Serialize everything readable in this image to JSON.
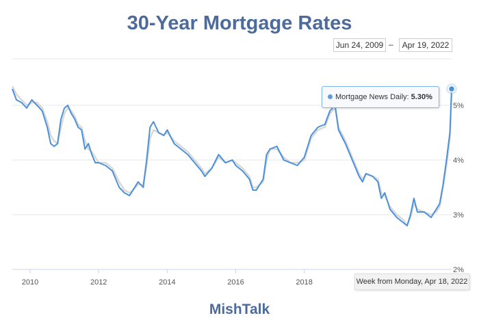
{
  "title": "30-Year Mortgage Rates",
  "date_range": {
    "from": "Jun 24, 2009",
    "to": "Apr 19, 2022",
    "separator": "–"
  },
  "brand": "MishTalk",
  "tooltip": {
    "series": "Mortgage News Daily: ",
    "value": "5.30%"
  },
  "week_label": "Week from Monday, Apr 18, 2022",
  "colors": {
    "main_line": "#4a90d9",
    "shadow_line": "#d8d8d8",
    "grid": "#e6e6e6",
    "title": "#4d6a9c"
  },
  "chart_data": {
    "type": "line",
    "title": "30-Year Mortgage Rates",
    "xlabel": "",
    "ylabel": "",
    "xlim": [
      2009.48,
      2022.3
    ],
    "ylim": [
      2,
      5.85
    ],
    "x_ticks": [
      "2010",
      "2012",
      "2014",
      "2016",
      "2018"
    ],
    "y_ticks": [
      {
        "value": 5,
        "label": "5%"
      },
      {
        "value": 4,
        "label": "4%"
      },
      {
        "value": 3,
        "label": "3%"
      },
      {
        "value": 2,
        "label": "2%"
      }
    ],
    "grid": "horizontal",
    "legend": "none",
    "series": [
      {
        "name": "Mortgage News Daily",
        "x": [
          2009.48,
          2009.6,
          2009.75,
          2009.9,
          2010.05,
          2010.2,
          2010.35,
          2010.5,
          2010.6,
          2010.7,
          2010.8,
          2010.9,
          2011.0,
          2011.1,
          2011.2,
          2011.3,
          2011.4,
          2011.5,
          2011.6,
          2011.7,
          2011.8,
          2011.9,
          2012.0,
          2012.2,
          2012.4,
          2012.6,
          2012.75,
          2012.9,
          2013.0,
          2013.15,
          2013.3,
          2013.4,
          2013.5,
          2013.6,
          2013.75,
          2013.9,
          2014.0,
          2014.2,
          2014.4,
          2014.6,
          2014.8,
          2015.0,
          2015.1,
          2015.3,
          2015.5,
          2015.7,
          2015.9,
          2016.0,
          2016.2,
          2016.4,
          2016.5,
          2016.6,
          2016.8,
          2016.9,
          2017.0,
          2017.2,
          2017.4,
          2017.6,
          2017.8,
          2018.0,
          2018.2,
          2018.4,
          2018.6,
          2018.75,
          2018.9,
          2019.0,
          2019.2,
          2019.4,
          2019.6,
          2019.7,
          2019.8,
          2020.0,
          2020.15,
          2020.25,
          2020.35,
          2020.5,
          2020.7,
          2020.9,
          2021.0,
          2021.1,
          2021.2,
          2021.3,
          2021.5,
          2021.7,
          2021.85,
          2021.95,
          2022.05,
          2022.15,
          2022.25,
          2022.3
        ],
        "y": [
          5.3,
          5.1,
          5.05,
          4.95,
          5.1,
          5.0,
          4.9,
          4.6,
          4.3,
          4.25,
          4.3,
          4.75,
          4.95,
          5.0,
          4.85,
          4.75,
          4.6,
          4.55,
          4.2,
          4.3,
          4.1,
          3.95,
          3.95,
          3.9,
          3.8,
          3.5,
          3.4,
          3.35,
          3.45,
          3.6,
          3.5,
          4.0,
          4.6,
          4.7,
          4.5,
          4.45,
          4.55,
          4.3,
          4.2,
          4.1,
          3.95,
          3.8,
          3.7,
          3.85,
          4.1,
          3.95,
          4.0,
          3.9,
          3.8,
          3.65,
          3.45,
          3.45,
          3.65,
          4.1,
          4.2,
          4.25,
          4.0,
          3.95,
          3.9,
          4.05,
          4.45,
          4.6,
          4.65,
          4.9,
          5.0,
          4.55,
          4.3,
          4.0,
          3.7,
          3.6,
          3.75,
          3.7,
          3.6,
          3.3,
          3.4,
          3.1,
          2.95,
          2.85,
          2.8,
          3.0,
          3.3,
          3.05,
          3.05,
          2.95,
          3.1,
          3.2,
          3.55,
          4.0,
          4.5,
          5.3
        ]
      },
      {
        "name": "",
        "x": [
          2009.48,
          2009.6,
          2009.75,
          2009.9,
          2010.05,
          2010.2,
          2010.35,
          2010.5,
          2010.6,
          2010.7,
          2010.8,
          2010.9,
          2011.0,
          2011.1,
          2011.2,
          2011.3,
          2011.4,
          2011.5,
          2011.6,
          2011.7,
          2011.8,
          2011.9,
          2012.0,
          2012.2,
          2012.4,
          2012.6,
          2012.75,
          2012.9,
          2013.0,
          2013.15,
          2013.3,
          2013.4,
          2013.5,
          2013.6,
          2013.75,
          2013.9,
          2014.0,
          2014.2,
          2014.4,
          2014.6,
          2014.8,
          2015.0,
          2015.1,
          2015.3,
          2015.5,
          2015.7,
          2015.9,
          2016.0,
          2016.2,
          2016.4,
          2016.5,
          2016.6,
          2016.8,
          2016.9,
          2017.0,
          2017.2,
          2017.4,
          2017.6,
          2017.8,
          2018.0,
          2018.2,
          2018.4,
          2018.6,
          2018.75,
          2018.9,
          2019.0,
          2019.2,
          2019.4,
          2019.6,
          2019.7,
          2019.8,
          2020.0,
          2020.15,
          2020.25,
          2020.35,
          2020.5,
          2020.7,
          2020.9,
          2021.0,
          2021.1,
          2021.2,
          2021.3,
          2021.5,
          2021.7,
          2021.85,
          2021.95,
          2022.05,
          2022.15,
          2022.25,
          2022.3
        ],
        "y": [
          5.35,
          5.2,
          5.1,
          5.0,
          5.05,
          5.05,
          4.95,
          4.7,
          4.45,
          4.35,
          4.3,
          4.6,
          4.85,
          4.95,
          4.9,
          4.8,
          4.65,
          4.6,
          4.35,
          4.2,
          4.15,
          4.05,
          3.95,
          3.95,
          3.85,
          3.6,
          3.45,
          3.4,
          3.45,
          3.55,
          3.55,
          3.9,
          4.4,
          4.55,
          4.5,
          4.45,
          4.5,
          4.35,
          4.25,
          4.15,
          4.0,
          3.85,
          3.75,
          3.85,
          4.05,
          3.95,
          4.0,
          3.95,
          3.85,
          3.7,
          3.5,
          3.5,
          3.6,
          4.0,
          4.2,
          4.2,
          4.05,
          3.95,
          3.95,
          4.0,
          4.4,
          4.55,
          4.6,
          4.85,
          4.95,
          4.6,
          4.35,
          4.05,
          3.75,
          3.65,
          3.75,
          3.7,
          3.65,
          3.4,
          3.35,
          3.15,
          3.0,
          2.9,
          2.8,
          2.95,
          3.2,
          3.1,
          3.05,
          3.0,
          3.05,
          3.15,
          3.5,
          3.9,
          4.4,
          5.2
        ]
      }
    ]
  }
}
